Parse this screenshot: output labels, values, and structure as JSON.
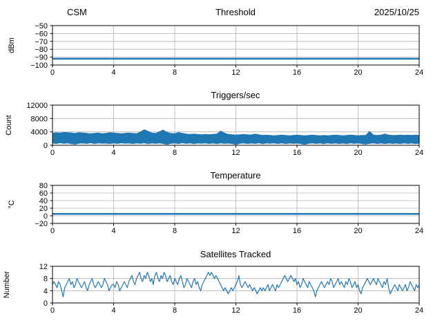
{
  "figure": {
    "background": "#ffffff",
    "accent_color": "#1f77b4",
    "grid_color": "#b0b0b0",
    "header": {
      "left": "CSM",
      "center": "Threshold",
      "right": "2025/10/25"
    }
  },
  "chart_data": [
    {
      "type": "line",
      "title": "Threshold",
      "title_left": "CSM",
      "title_right": "2025/10/25",
      "ylabel": "dBm",
      "xlim": [
        0,
        24
      ],
      "xticks": [
        0,
        4,
        8,
        12,
        16,
        20,
        24
      ],
      "ylim": [
        -100,
        -50
      ],
      "yticks": [
        -100,
        -90,
        -80,
        -70,
        -60,
        -50
      ],
      "grid": true,
      "series": [
        {
          "name": "threshold-dbm",
          "type": "hline",
          "value": -92,
          "color": "#1f77b4",
          "linewidth": 2.5
        }
      ]
    },
    {
      "type": "area",
      "title": "Triggers/sec",
      "ylabel": "Count",
      "xlim": [
        0,
        24
      ],
      "xticks": [
        0,
        4,
        8,
        12,
        16,
        20,
        24
      ],
      "ylim": [
        0,
        12000
      ],
      "yticks": [
        0,
        4000,
        8000,
        12000
      ],
      "grid": true,
      "series": [
        {
          "name": "triggers-band",
          "type": "band",
          "color": "#1f77b4",
          "x_start": 0,
          "x_step": 0.25,
          "top": [
            3600,
            3800,
            3700,
            3900,
            3800,
            3700,
            3600,
            3800,
            3700,
            3600,
            3500,
            3600,
            3700,
            3500,
            3600,
            3800,
            3700,
            3600,
            3500,
            3600,
            3700,
            3600,
            3500,
            4000,
            4700,
            4200,
            3700,
            3600,
            4100,
            4600,
            3900,
            3600,
            3500,
            3900,
            3600,
            3400,
            3300,
            3400,
            3300,
            3200,
            3300,
            3200,
            3300,
            3400,
            4300,
            3700,
            3300,
            3200,
            3100,
            3200,
            3300,
            3200,
            3100,
            3400,
            3200,
            3000,
            3100,
            3000,
            2900,
            3000,
            3100,
            3000,
            2900,
            3000,
            3100,
            3000,
            2900,
            3000,
            3100,
            3000,
            2900,
            3000,
            2900,
            3000,
            3100,
            3000,
            2900,
            3000,
            3100,
            3000,
            2900,
            3000,
            3000,
            4200,
            3100,
            3000,
            3100,
            3400,
            3100,
            3000,
            3000,
            3100,
            3000,
            3100,
            3000,
            3100,
            3000
          ],
          "bottom": [
            600,
            450,
            700,
            500,
            650,
            400,
            300,
            550,
            600,
            480,
            700,
            420,
            650,
            520,
            580,
            460,
            620,
            470,
            680,
            510,
            590,
            440,
            630,
            490,
            660,
            430,
            610,
            500,
            640,
            460,
            250,
            520,
            600,
            450,
            680,
            490,
            620,
            440,
            590,
            510,
            650,
            470,
            600,
            430,
            640,
            500,
            580,
            460,
            200,
            490,
            630,
            450,
            610,
            480,
            660,
            420,
            590,
            520,
            620,
            460,
            640,
            430,
            600,
            490,
            570,
            450,
            250,
            500,
            620,
            470,
            590,
            440,
            630,
            480,
            610,
            460,
            580,
            430,
            640,
            500,
            600,
            450,
            300,
            490,
            620,
            460,
            590,
            430,
            610,
            470,
            580,
            440,
            620,
            480,
            600,
            450,
            560
          ]
        }
      ]
    },
    {
      "type": "line",
      "title": "Temperature",
      "ylabel": "°C",
      "xlim": [
        0,
        24
      ],
      "xticks": [
        0,
        4,
        8,
        12,
        16,
        20,
        24
      ],
      "ylim": [
        -20,
        80
      ],
      "yticks": [
        -20,
        0,
        20,
        40,
        60,
        80
      ],
      "grid": true,
      "series": [
        {
          "name": "temperature-c",
          "type": "hline",
          "value": 5,
          "color": "#1f77b4",
          "linewidth": 2.5
        }
      ]
    },
    {
      "type": "line",
      "title": "Satellites Tracked",
      "ylabel": "Number",
      "xlim": [
        0,
        24
      ],
      "xticks": [
        0,
        4,
        8,
        12,
        16,
        20,
        24
      ],
      "ylim": [
        0,
        12
      ],
      "yticks": [
        0,
        4,
        8,
        12
      ],
      "grid": true,
      "series": [
        {
          "name": "satellites-tracked",
          "type": "line",
          "color": "#1f77b4",
          "linewidth": 1.2,
          "x_start": 0,
          "x_step": 0.1,
          "y": [
            6,
            7,
            6,
            5,
            7,
            6,
            4,
            2,
            5,
            6,
            7,
            8,
            6,
            7,
            5,
            6,
            8,
            7,
            6,
            5,
            6,
            7,
            5,
            4,
            6,
            7,
            8,
            6,
            5,
            6,
            7,
            6,
            5,
            6,
            8,
            7,
            6,
            4,
            5,
            6,
            6,
            5,
            7,
            6,
            4,
            5,
            6,
            7,
            6,
            5,
            7,
            8,
            9,
            7,
            6,
            8,
            9,
            10,
            8,
            7,
            9,
            8,
            10,
            9,
            7,
            8,
            6,
            9,
            10,
            8,
            7,
            9,
            8,
            10,
            9,
            7,
            8,
            9,
            7,
            6,
            8,
            7,
            6,
            8,
            9,
            7,
            5,
            6,
            8,
            7,
            6,
            5,
            7,
            8,
            6,
            7,
            5,
            4,
            6,
            7,
            8,
            9,
            10,
            9,
            10,
            9,
            8,
            9,
            8,
            7,
            6,
            5,
            4,
            5,
            4,
            3,
            4,
            5,
            4,
            5,
            6,
            7,
            9,
            6,
            5,
            6,
            7,
            6,
            5,
            6,
            5,
            4,
            5,
            4,
            3,
            4,
            5,
            4,
            5,
            4,
            5,
            6,
            4,
            5,
            6,
            5,
            4,
            6,
            5,
            6,
            7,
            8,
            9,
            8,
            7,
            8,
            9,
            8,
            7,
            8,
            6,
            7,
            5,
            6,
            8,
            7,
            6,
            5,
            7,
            6,
            5,
            4,
            2,
            4,
            5,
            6,
            7,
            6,
            5,
            6,
            7,
            6,
            8,
            7,
            5,
            6,
            7,
            8,
            6,
            7,
            6,
            5,
            7,
            6,
            8,
            7,
            5,
            6,
            7,
            5,
            6,
            4,
            3,
            5,
            6,
            7,
            8,
            7,
            6,
            7,
            8,
            7,
            6,
            8,
            7,
            6,
            5,
            7,
            6,
            8,
            5,
            3,
            4,
            5,
            6,
            5,
            4,
            6,
            5,
            4,
            5,
            6,
            4,
            5,
            7,
            6,
            5,
            4,
            6,
            5,
            6
          ]
        }
      ]
    }
  ]
}
